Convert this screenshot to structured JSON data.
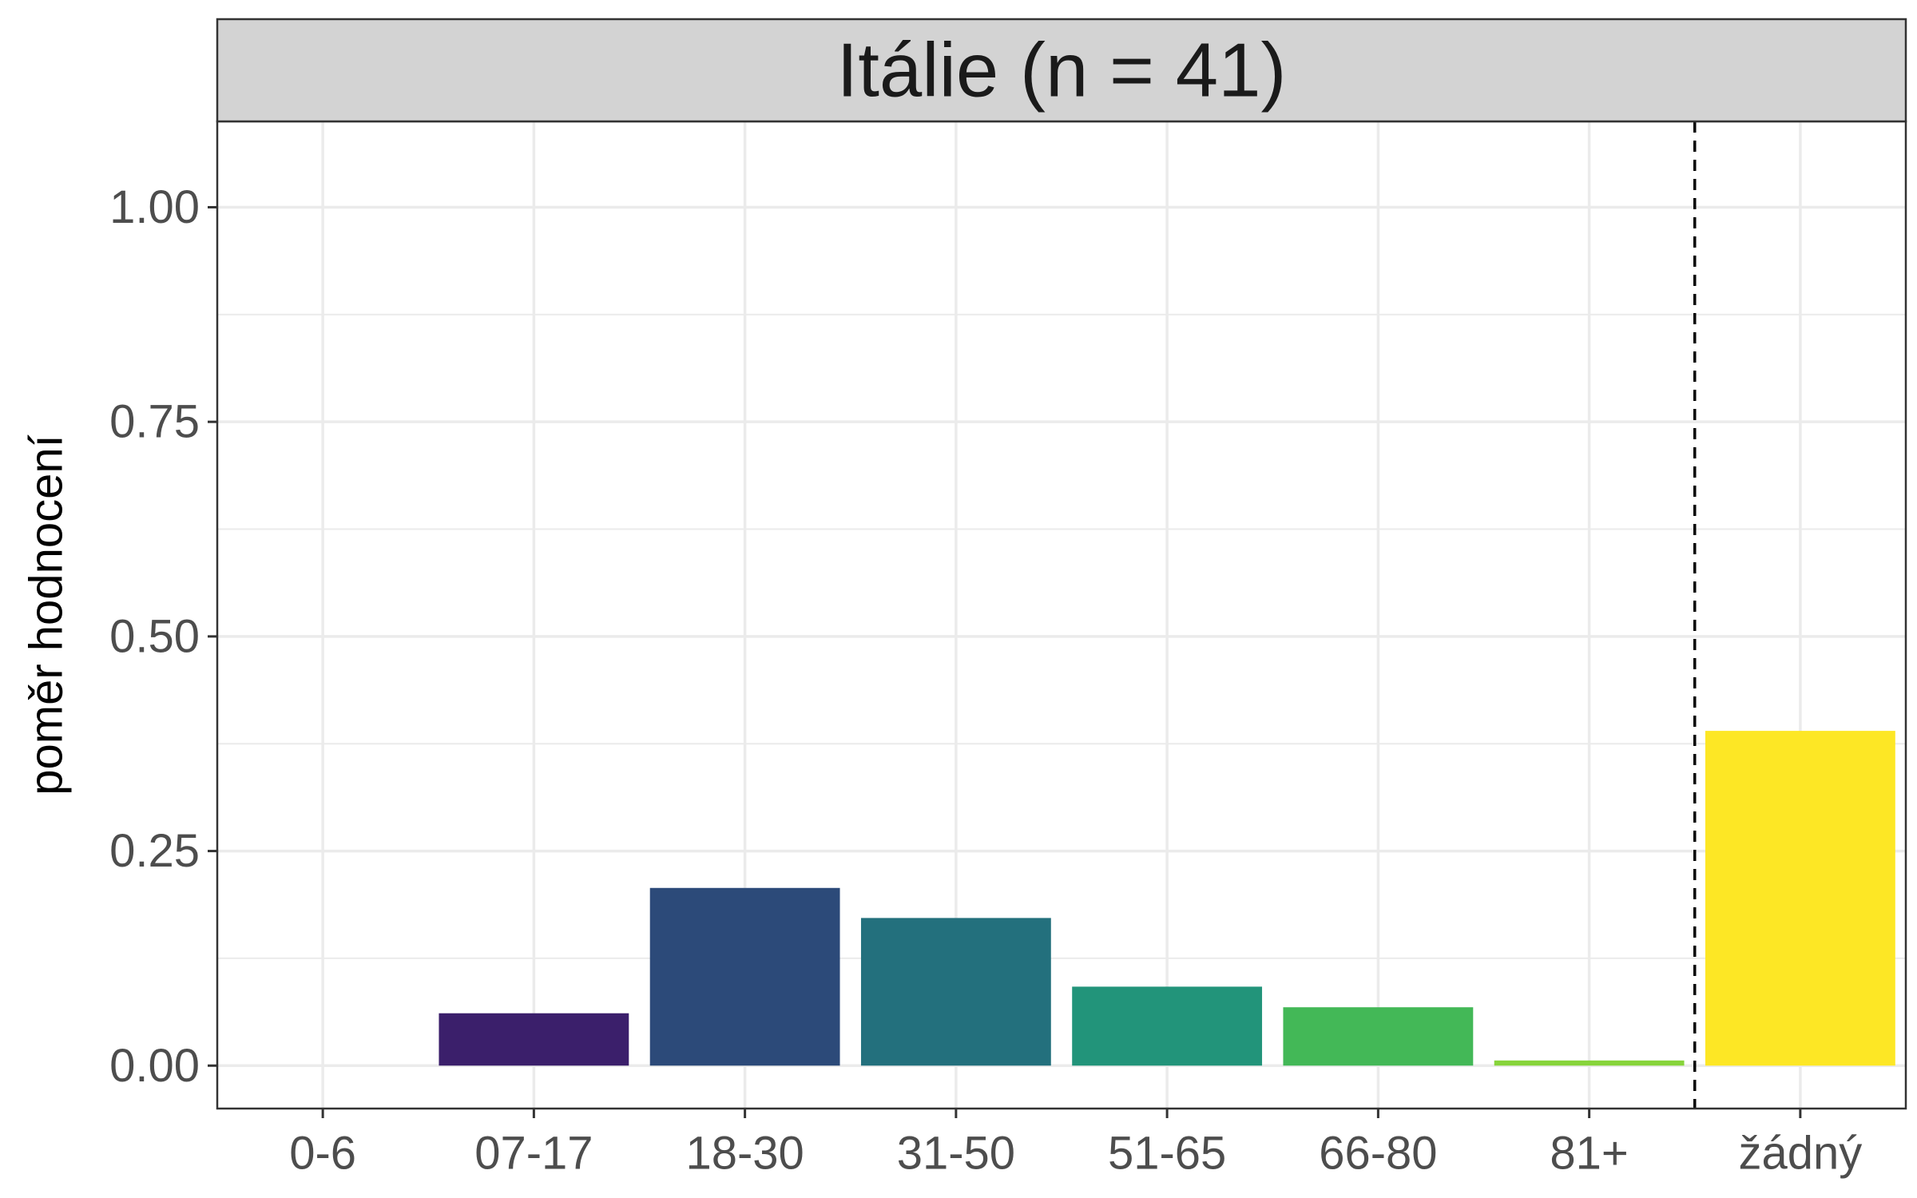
{
  "chart_data": {
    "type": "bar",
    "facet_title": "Itálie (n = 41)",
    "xlabel": "",
    "ylabel": "poměr hodnocení",
    "categories": [
      "0-6",
      "07-17",
      "18-30",
      "31-50",
      "51-65",
      "66-80",
      "81+",
      "žádný"
    ],
    "values": [
      0.0,
      0.061,
      0.207,
      0.172,
      0.092,
      0.068,
      0.006,
      0.39
    ],
    "colors": [
      "#440154",
      "#3b1f6b",
      "#2c4a79",
      "#23707d",
      "#22947a",
      "#43b857",
      "#87d43b",
      "#fde725"
    ],
    "ylim": [
      -0.05,
      1.1
    ],
    "yticks": [
      0.0,
      0.25,
      0.5,
      0.75,
      1.0
    ],
    "ytick_labels": [
      "0.00",
      "0.25",
      "0.50",
      "0.75",
      "1.00"
    ],
    "reference_line": {
      "between": [
        "81+",
        "žádný"
      ],
      "style": "dashed",
      "color": "#000000"
    },
    "grid": true,
    "legend": "none",
    "theme": {
      "strip_fill": "#d3d3d3",
      "panel_border": "#333333",
      "grid_color": "#ebebeb"
    }
  }
}
